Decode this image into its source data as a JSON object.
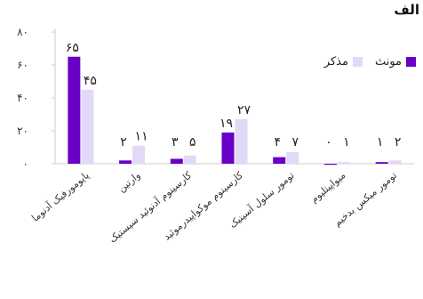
{
  "panel_label": "الف",
  "colors": {
    "female": "#6a00c8",
    "male": "#e2d9f7",
    "axis": "#cccccc",
    "text": "#333333"
  },
  "chart_data": {
    "type": "bar",
    "categories": [
      "پاپومورفیک آدنوما",
      "وارتین",
      "کارسینوم آدنوئید سیستیک",
      "کارسینوم موکواپیدرموئید",
      "تومور سلول آسینیک",
      "میواپیتلیوم",
      "تومور میکس بدخیم"
    ],
    "series": [
      {
        "name": "مونث",
        "values": [
          65,
          2,
          3,
          19,
          4,
          0,
          1
        ],
        "labels": [
          "۶۵",
          "۲",
          "۳",
          "۱۹",
          "۴",
          "۰",
          "۱"
        ]
      },
      {
        "name": "مذکر",
        "values": [
          45,
          11,
          5,
          27,
          7,
          1,
          2
        ],
        "labels": [
          "۴۵",
          "۱۱",
          "۵",
          "۲۷",
          "۷",
          "۱",
          "۲"
        ]
      }
    ],
    "yticks": [
      0,
      20,
      40,
      60,
      80
    ],
    "ytick_labels": [
      "۰",
      "۲۰",
      "۴۰",
      "۶۰",
      "۸۰"
    ],
    "ylim": [
      0,
      80
    ],
    "legend_position": "top-right",
    "grid": false
  }
}
